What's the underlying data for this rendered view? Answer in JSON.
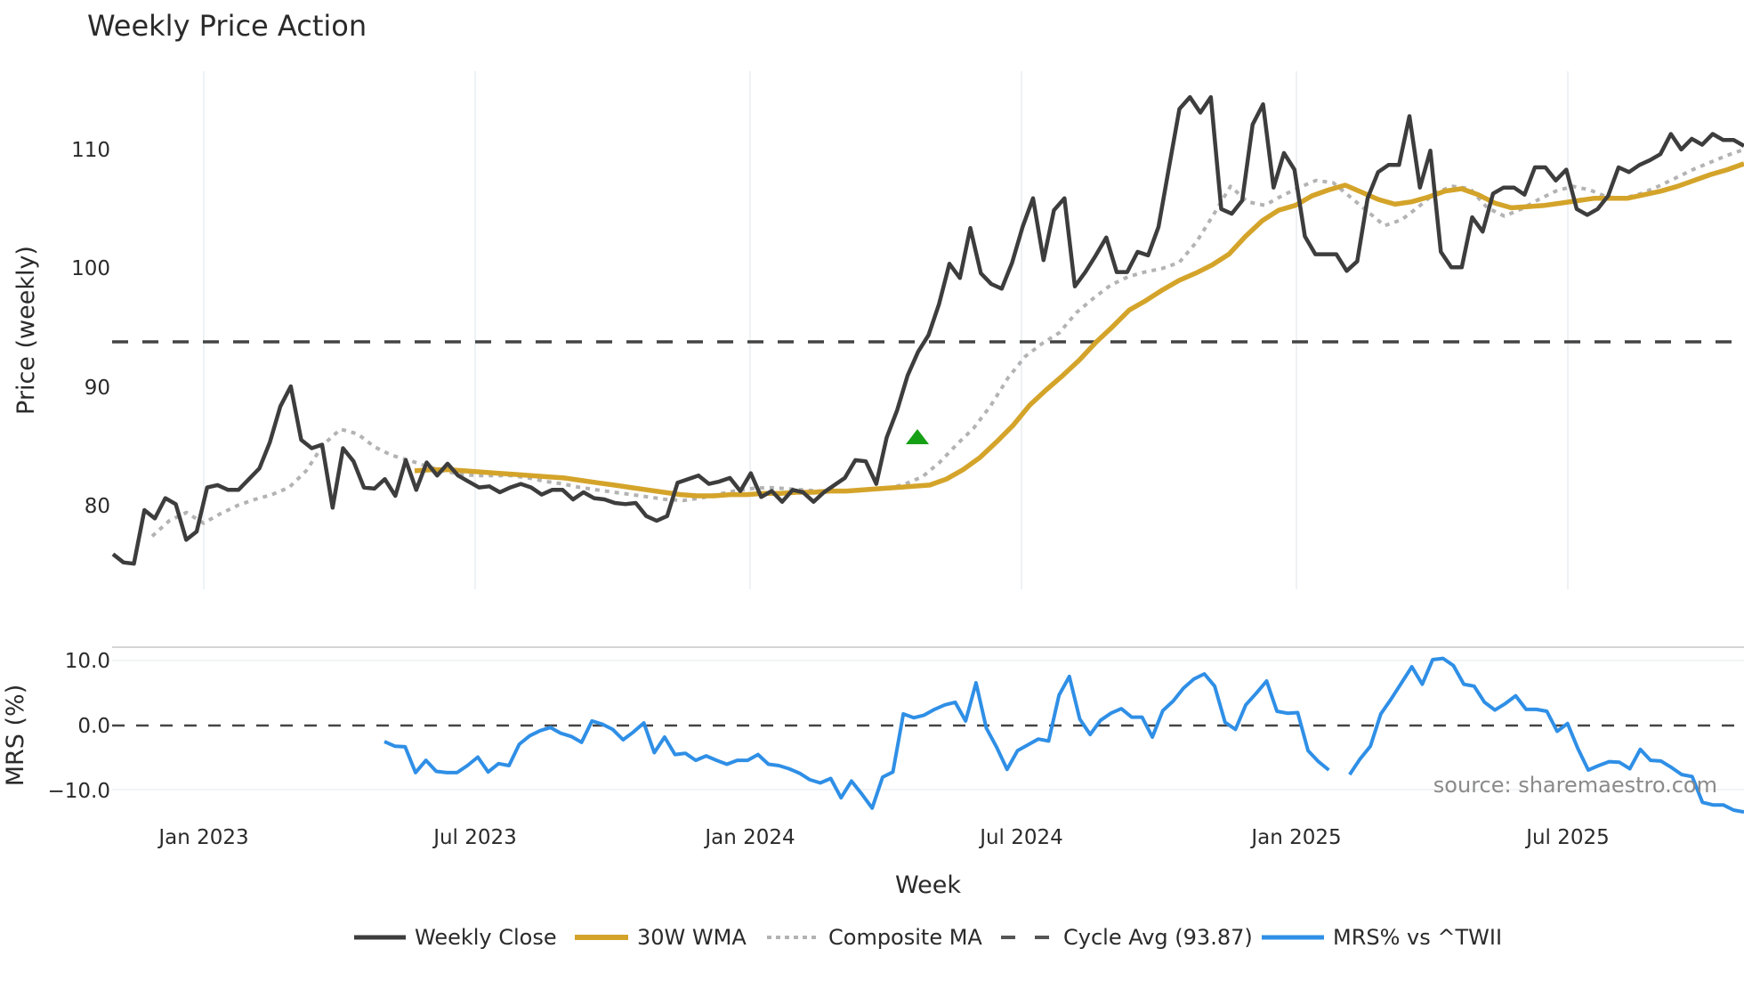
{
  "title": "Weekly Price Action",
  "source_note": "source: sharemaestro.com",
  "colors": {
    "close": "#3d3d3d",
    "wma": "#d4a42a",
    "composite": "#b3b3b3",
    "cycle": "#444444",
    "mrs": "#2f8fe6",
    "signal": "#16a016",
    "grid": "#e9edf1"
  },
  "axes": {
    "price_ylabel": "Price (weekly)",
    "mrs_ylabel": "MRS (%)",
    "xlabel": "Week",
    "price_ticks": [
      "80",
      "90",
      "100",
      "110"
    ],
    "mrs_ticks": [
      "10.0",
      "0.0",
      "−10.0"
    ],
    "x_ticks": [
      "Jan 2023",
      "Jul 2023",
      "Jan 2024",
      "Jul 2024",
      "Jan 2025",
      "Jul 2025"
    ]
  },
  "legend": [
    {
      "label": "Weekly Close",
      "style": "solid-dark"
    },
    {
      "label": "30W WMA",
      "style": "solid-gold"
    },
    {
      "label": "Composite MA",
      "style": "dotted-grey"
    },
    {
      "label": "Cycle Avg (93.87)",
      "style": "dashed-dark"
    },
    {
      "label": "MRS% vs ^TWII",
      "style": "solid-blue"
    }
  ],
  "chart_data": [
    {
      "type": "line",
      "title": "Weekly Price Action",
      "xlabel": "Week",
      "ylabel": "Price (weekly)",
      "ylim": [
        73.5,
        116
      ],
      "x_ticks": [
        "Jan 2023",
        "Jul 2023",
        "Jan 2024",
        "Jul 2024",
        "Jan 2025",
        "Jul 2025"
      ],
      "grid": "vertical only",
      "legend_position": "bottom",
      "series": [
        {
          "name": "Weekly Close",
          "values": [
            76.0,
            75.3,
            75.2,
            79.7,
            79.0,
            80.7,
            80.2,
            77.2,
            77.9,
            81.6,
            81.8,
            81.4,
            81.4,
            82.3,
            83.2,
            85.4,
            88.4,
            90.1,
            85.6,
            84.9,
            85.2,
            79.9,
            84.9,
            83.8,
            81.6,
            81.5,
            82.3,
            80.9,
            83.9,
            81.4,
            83.7,
            82.6,
            83.6,
            82.6,
            82.1,
            81.6,
            81.7,
            81.2,
            81.6,
            81.9,
            81.6,
            81.0,
            81.4,
            81.4,
            80.6,
            81.2,
            80.7,
            80.6,
            80.3,
            80.2,
            80.3,
            79.2,
            78.8,
            79.2,
            82.0,
            82.3,
            82.6,
            81.9,
            82.1,
            82.4,
            81.3,
            82.8,
            80.8,
            81.3,
            80.4,
            81.4,
            81.2,
            80.4,
            81.2,
            81.8,
            82.4,
            83.9,
            83.8,
            81.9,
            85.8,
            88.1,
            91.0,
            93.0,
            94.4,
            97.0,
            100.4,
            99.2,
            103.4,
            99.6,
            98.7,
            98.3,
            100.5,
            103.5,
            105.9,
            100.7,
            104.9,
            105.9,
            98.5,
            99.7,
            101.1,
            102.6,
            99.7,
            99.7,
            101.4,
            101.1,
            103.5,
            108.5,
            113.4,
            114.4,
            113.1,
            114.4,
            105.0,
            104.6,
            105.7,
            112.1,
            113.8,
            106.8,
            109.7,
            108.3,
            102.7,
            101.2,
            101.2,
            101.2,
            99.8,
            100.6,
            105.9,
            108.1,
            108.7,
            108.7,
            112.8,
            106.8,
            109.9,
            101.4,
            100.1,
            100.1,
            104.3,
            103.1,
            106.3,
            106.8,
            106.8,
            106.2,
            108.5,
            108.5,
            107.4,
            108.3,
            105.0,
            104.5,
            105.0,
            106.1,
            108.5,
            108.1,
            108.7,
            109.1,
            109.6,
            111.3,
            110.0,
            110.9,
            110.4,
            111.3,
            110.8,
            110.8,
            110.3
          ]
        },
        {
          "name": "30W WMA",
          "values_note": "starts ~May 2023",
          "values": [
            83.0,
            83.1,
            83.1,
            83.0,
            82.9,
            82.8,
            82.7,
            82.6,
            82.5,
            82.4,
            82.2,
            82.0,
            81.8,
            81.6,
            81.4,
            81.2,
            81.0,
            80.9,
            80.9,
            81.0,
            81.0,
            81.1,
            81.1,
            81.2,
            81.2,
            81.3,
            81.3,
            81.4,
            81.5,
            81.6,
            81.7,
            81.8,
            82.3,
            83.1,
            84.1,
            85.4,
            86.8,
            88.5,
            89.8,
            91.0,
            92.3,
            93.8,
            95.1,
            96.5,
            97.3,
            98.2,
            99.0,
            99.6,
            100.3,
            101.2,
            102.7,
            104.0,
            104.9,
            105.3,
            106.1,
            106.6,
            107.0,
            106.4,
            105.8,
            105.4,
            105.6,
            106.0,
            106.5,
            106.7,
            106.2,
            105.5,
            105.1,
            105.2,
            105.3,
            105.5,
            105.7,
            105.9,
            105.9,
            105.9,
            106.2,
            106.5,
            106.9,
            107.4,
            107.9,
            108.3,
            108.8
          ]
        },
        {
          "name": "Composite MA",
          "values_note": "starts ~Dec 2022",
          "values": [
            77.5,
            78.8,
            79.5,
            78.6,
            79.4,
            80.1,
            80.6,
            81.0,
            81.6,
            83.0,
            85.2,
            86.5,
            86.1,
            85.0,
            84.3,
            83.9,
            83.4,
            83.0,
            82.7,
            82.6,
            82.6,
            82.6,
            82.4,
            82.1,
            81.9,
            81.6,
            81.4,
            81.2,
            81.0,
            80.8,
            80.6,
            80.5,
            80.7,
            81.0,
            81.3,
            81.5,
            81.6,
            81.5,
            81.4,
            81.3,
            81.3,
            81.3,
            81.4,
            81.5,
            81.9,
            82.5,
            83.7,
            85.2,
            86.6,
            88.5,
            90.8,
            92.6,
            93.7,
            94.6,
            96.3,
            97.5,
            98.6,
            99.3,
            99.7,
            100.0,
            100.5,
            102.2,
            104.5,
            106.9,
            105.6,
            105.3,
            106.1,
            106.8,
            107.4,
            107.2,
            106.0,
            104.8,
            103.6,
            104.1,
            105.2,
            106.4,
            106.9,
            106.7,
            105.1,
            104.4,
            105.0,
            105.8,
            106.5,
            106.9,
            106.6,
            106.0,
            105.9,
            106.3,
            106.9,
            107.6,
            108.3,
            108.9,
            109.5,
            110.0
          ]
        },
        {
          "name": "Cycle Avg (93.87)",
          "values": [
            93.87
          ],
          "style": "dashed horizontal"
        }
      ],
      "annotations": [
        {
          "type": "marker",
          "shape": "triangle-up",
          "color": "#16a016",
          "date_approx": "Apr 2024",
          "value": 85.8
        }
      ]
    },
    {
      "type": "line",
      "ylabel": "MRS (%)",
      "ylim": [
        -14,
        12
      ],
      "y_ticks": [
        10.0,
        0.0,
        -10.0
      ],
      "series": [
        {
          "name": "MRS% vs ^TWII",
          "values_note": "starts ~May 2023; gap around Jan 2025",
          "values": [
            -2.5,
            -3.2,
            -3.3,
            -7.3,
            -5.4,
            -7.1,
            -7.3,
            -7.3,
            -6.2,
            -4.9,
            -7.2,
            -5.9,
            -6.2,
            -2.9,
            -1.6,
            -0.8,
            -0.3,
            -1.2,
            -1.7,
            -2.6,
            0.7,
            0.2,
            -0.6,
            -2.2,
            -1.0,
            0.4,
            -4.2,
            -1.8,
            -4.5,
            -4.3,
            -5.4,
            -4.7,
            -5.4,
            -6.0,
            -5.4,
            -5.4,
            -4.5,
            -6.0,
            -6.2,
            -6.7,
            -7.4,
            -8.4,
            -8.9,
            -8.2,
            -11.2,
            -8.6,
            -10.6,
            -12.8,
            -8.0,
            -7.2,
            1.8,
            1.2,
            1.6,
            2.5,
            3.2,
            3.6,
            0.7,
            6.6,
            -0.4,
            -3.4,
            -6.8,
            -3.9,
            -3.0,
            -2.1,
            -2.4,
            4.7,
            7.6,
            1.0,
            -1.4,
            0.8,
            1.9,
            2.6,
            1.3,
            1.3,
            -1.8,
            2.3,
            3.8,
            5.8,
            7.2,
            8.0,
            6.1,
            0.5,
            -0.6,
            3.2,
            5.0,
            6.9,
            2.2,
            1.9,
            2.0,
            -3.9,
            -5.6,
            -6.9,
            null,
            -7.6,
            -5.2,
            -3.2,
            1.8,
            4.1,
            6.6,
            9.1,
            6.4,
            10.2,
            10.4,
            9.3,
            6.4,
            6.1,
            3.6,
            2.4,
            3.4,
            4.6,
            2.5,
            2.5,
            2.2,
            -0.9,
            0.3,
            -3.6,
            -6.9,
            -6.2,
            -5.6,
            -5.7,
            -6.7,
            -3.7,
            -5.4,
            -5.5,
            -6.5,
            -7.6,
            -7.9,
            -11.9,
            -12.3,
            -12.3,
            -13.1,
            -13.4
          ]
        },
        {
          "name": "Zero line",
          "values": [
            0
          ],
          "style": "dashed horizontal"
        }
      ]
    }
  ]
}
